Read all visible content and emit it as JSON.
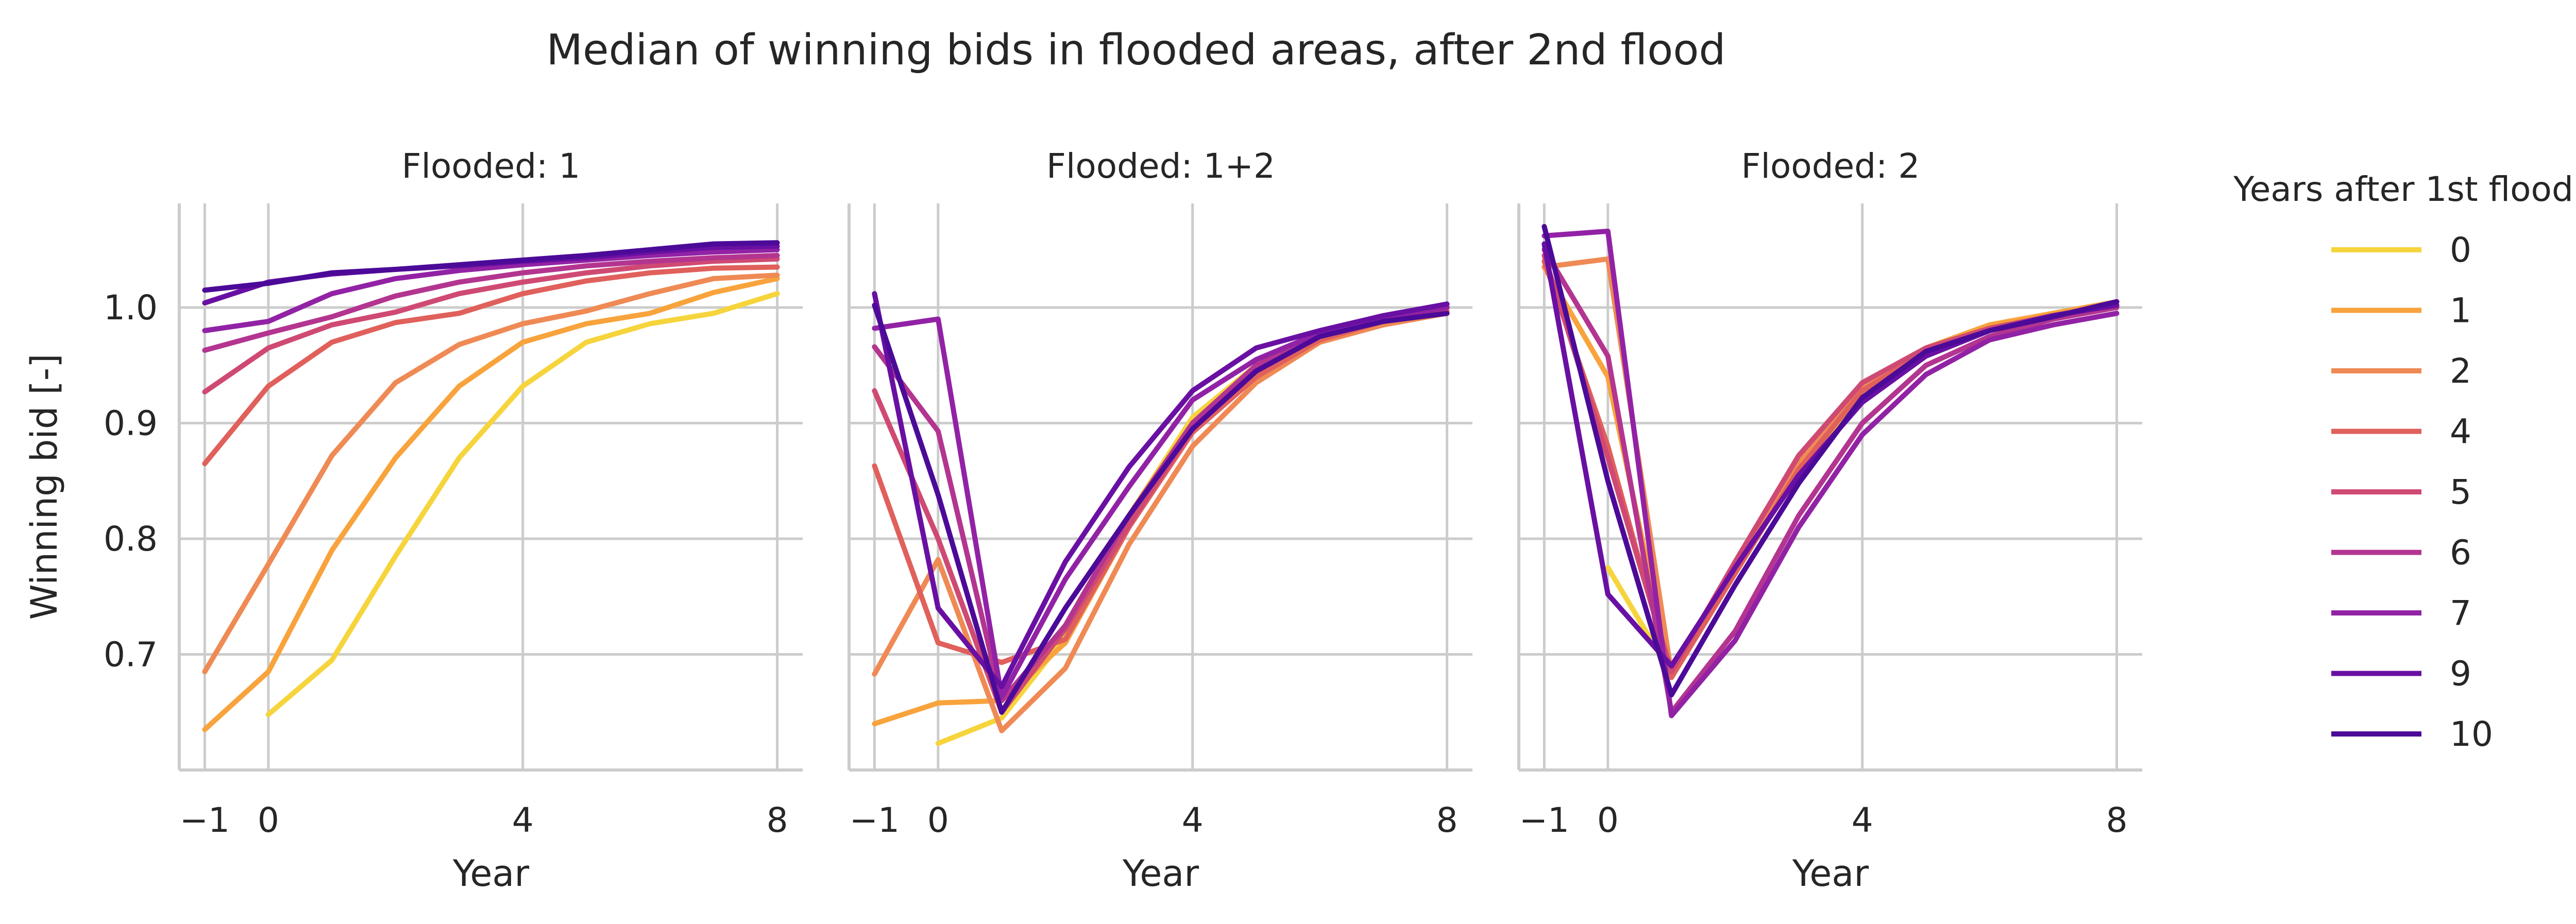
{
  "title": "Median of winning bids in flooded areas, after 2nd flood",
  "legend": {
    "title": "Years after 1st flood",
    "entries": [
      {
        "label": "0",
        "color": "#f6d43c"
      },
      {
        "label": "1",
        "color": "#f8a33c"
      },
      {
        "label": "2",
        "color": "#ef8a55"
      },
      {
        "label": "4",
        "color": "#e0605c"
      },
      {
        "label": "5",
        "color": "#cf4a73"
      },
      {
        "label": "6",
        "color": "#b33590"
      },
      {
        "label": "7",
        "color": "#9222a5"
      },
      {
        "label": "9",
        "color": "#6910a3"
      },
      {
        "label": "10",
        "color": "#4c0a98"
      }
    ]
  },
  "chart_data": [
    {
      "type": "line",
      "title": "Flooded: 1",
      "xlabel": "Year",
      "ylabel": "Winning bid [-]",
      "xlim": [
        -1.4,
        8.4
      ],
      "ylim": [
        0.6,
        1.09
      ],
      "xticks": [
        -1,
        0,
        4,
        8
      ],
      "xtick_labels": [
        "−1",
        "0",
        "4",
        "8"
      ],
      "yticks": [
        0.7,
        0.8,
        0.9,
        1.0
      ],
      "ytick_labels": [
        "0.7",
        "0.8",
        "0.9",
        "1.0"
      ],
      "grid": true,
      "series": [
        {
          "name": "0",
          "color": "#f6d43c",
          "x": [
            0,
            1,
            2,
            3,
            4,
            5,
            6,
            7,
            8
          ],
          "y": [
            0.648,
            0.695,
            0.785,
            0.87,
            0.932,
            0.97,
            0.986,
            0.995,
            1.012
          ]
        },
        {
          "name": "1",
          "color": "#f8a33c",
          "x": [
            -1,
            0,
            1,
            2,
            3,
            4,
            5,
            6,
            7,
            8
          ],
          "y": [
            0.635,
            0.685,
            0.79,
            0.87,
            0.932,
            0.97,
            0.986,
            0.995,
            1.013,
            1.025
          ]
        },
        {
          "name": "2",
          "color": "#ef8a55",
          "x": [
            -1,
            0,
            1,
            2,
            3,
            4,
            5,
            6,
            7,
            8
          ],
          "y": [
            0.685,
            0.778,
            0.872,
            0.935,
            0.968,
            0.986,
            0.997,
            1.012,
            1.025,
            1.028
          ]
        },
        {
          "name": "4",
          "color": "#e0605c",
          "x": [
            -1,
            0,
            1,
            2,
            3,
            4,
            5,
            6,
            7,
            8
          ],
          "y": [
            0.865,
            0.932,
            0.97,
            0.987,
            0.995,
            1.012,
            1.023,
            1.03,
            1.034,
            1.035
          ]
        },
        {
          "name": "5",
          "color": "#cf4a73",
          "x": [
            -1,
            0,
            1,
            2,
            3,
            4,
            5,
            6,
            7,
            8
          ],
          "y": [
            0.927,
            0.965,
            0.985,
            0.996,
            1.012,
            1.022,
            1.03,
            1.036,
            1.04,
            1.042
          ]
        },
        {
          "name": "6",
          "color": "#b33590",
          "x": [
            -1,
            0,
            1,
            2,
            3,
            4,
            5,
            6,
            7,
            8
          ],
          "y": [
            0.963,
            0.978,
            0.992,
            1.01,
            1.022,
            1.03,
            1.036,
            1.04,
            1.043,
            1.045
          ]
        },
        {
          "name": "7",
          "color": "#9222a5",
          "x": [
            -1,
            0,
            1,
            2,
            3,
            4,
            5,
            6,
            7,
            8
          ],
          "y": [
            0.98,
            0.988,
            1.012,
            1.025,
            1.032,
            1.037,
            1.041,
            1.045,
            1.048,
            1.05
          ]
        },
        {
          "name": "9",
          "color": "#6910a3",
          "x": [
            -1,
            0,
            1,
            2,
            3,
            4,
            5,
            6,
            7,
            8
          ],
          "y": [
            1.004,
            1.022,
            1.029,
            1.033,
            1.036,
            1.04,
            1.043,
            1.048,
            1.052,
            1.053
          ]
        },
        {
          "name": "10",
          "color": "#4c0a98",
          "x": [
            -1,
            0,
            1,
            2,
            3,
            4,
            5,
            6,
            7,
            8
          ],
          "y": [
            1.015,
            1.021,
            1.03,
            1.033,
            1.037,
            1.041,
            1.045,
            1.05,
            1.055,
            1.056
          ]
        }
      ]
    },
    {
      "type": "line",
      "title": "Flooded: 1+2",
      "xlabel": "Year",
      "ylabel": "",
      "xlim": [
        -1.4,
        8.4
      ],
      "ylim": [
        0.6,
        1.09
      ],
      "xticks": [
        -1,
        0,
        4,
        8
      ],
      "xtick_labels": [
        "−1",
        "0",
        "4",
        "8"
      ],
      "yticks": [
        0.7,
        0.8,
        0.9,
        1.0
      ],
      "ytick_labels": [],
      "grid": true,
      "series": [
        {
          "name": "0",
          "color": "#f6d43c",
          "x": [
            0,
            1,
            2,
            3,
            4,
            5,
            6,
            7,
            8
          ],
          "y": [
            0.623,
            0.645,
            0.715,
            0.82,
            0.905,
            0.95,
            0.975,
            0.99,
            1.0
          ]
        },
        {
          "name": "1",
          "color": "#f8a33c",
          "x": [
            -1,
            0,
            1,
            2,
            3,
            4,
            5,
            6,
            7,
            8
          ],
          "y": [
            0.64,
            0.658,
            0.66,
            0.71,
            0.81,
            0.9,
            0.945,
            0.975,
            0.99,
            1.0
          ]
        },
        {
          "name": "2",
          "color": "#ef8a55",
          "x": [
            -1,
            0,
            1,
            2,
            3,
            4,
            5,
            6,
            7,
            8
          ],
          "y": [
            0.683,
            0.782,
            0.634,
            0.688,
            0.795,
            0.88,
            0.935,
            0.97,
            0.985,
            0.995
          ]
        },
        {
          "name": "4",
          "color": "#e0605c",
          "x": [
            -1,
            0,
            1,
            2,
            3,
            4,
            5,
            6,
            7,
            8
          ],
          "y": [
            0.863,
            0.71,
            0.693,
            0.713,
            0.81,
            0.892,
            0.94,
            0.972,
            0.988,
            0.997
          ]
        },
        {
          "name": "5",
          "color": "#cf4a73",
          "x": [
            -1,
            0,
            1,
            2,
            3,
            4,
            5,
            6,
            7,
            8
          ],
          "y": [
            0.928,
            0.8,
            0.65,
            0.722,
            0.812,
            0.895,
            0.945,
            0.975,
            0.99,
            1.0
          ]
        },
        {
          "name": "6",
          "color": "#b33590",
          "x": [
            -1,
            0,
            1,
            2,
            3,
            4,
            5,
            6,
            7,
            8
          ],
          "y": [
            0.966,
            0.893,
            0.66,
            0.725,
            0.82,
            0.9,
            0.95,
            0.975,
            0.99,
            1.0
          ]
        },
        {
          "name": "7",
          "color": "#9222a5",
          "x": [
            -1,
            0,
            1,
            2,
            3,
            4,
            5,
            6,
            7,
            8
          ],
          "y": [
            0.982,
            0.99,
            0.663,
            0.765,
            0.845,
            0.92,
            0.955,
            0.978,
            0.992,
            1.0
          ]
        },
        {
          "name": "9",
          "color": "#6910a3",
          "x": [
            -1,
            0,
            1,
            2,
            3,
            4,
            5,
            6,
            7,
            8
          ],
          "y": [
            1.012,
            0.74,
            0.672,
            0.78,
            0.862,
            0.928,
            0.965,
            0.98,
            0.993,
            1.003
          ]
        },
        {
          "name": "10",
          "color": "#4c0a98",
          "x": [
            -1,
            0,
            1,
            2,
            3,
            4,
            5,
            6,
            7,
            8
          ],
          "y": [
            1.002,
            0.838,
            0.65,
            0.74,
            0.82,
            0.895,
            0.945,
            0.975,
            0.988,
            0.995
          ]
        }
      ]
    },
    {
      "type": "line",
      "title": "Flooded: 2",
      "xlabel": "Year",
      "ylabel": "",
      "xlim": [
        -1.4,
        8.4
      ],
      "ylim": [
        0.6,
        1.09
      ],
      "xticks": [
        -1,
        0,
        4,
        8
      ],
      "xtick_labels": [
        "−1",
        "0",
        "4",
        "8"
      ],
      "yticks": [
        0.7,
        0.8,
        0.9,
        1.0
      ],
      "ytick_labels": [],
      "grid": true,
      "series": [
        {
          "name": "0",
          "color": "#f6d43c",
          "x": [
            0,
            1,
            2,
            3,
            4,
            5,
            6,
            7,
            8
          ],
          "y": [
            0.775,
            0.683,
            0.77,
            0.86,
            0.925,
            0.96,
            0.98,
            0.99,
            1.0
          ]
        },
        {
          "name": "1",
          "color": "#f8a33c",
          "x": [
            -1,
            0,
            1,
            2,
            3,
            4,
            5,
            6,
            7,
            8
          ],
          "y": [
            1.035,
            0.94,
            0.68,
            0.775,
            0.865,
            0.93,
            0.965,
            0.985,
            0.995,
            1.005
          ]
        },
        {
          "name": "2",
          "color": "#ef8a55",
          "x": [
            -1,
            0,
            1,
            2,
            3,
            4,
            5,
            6,
            7,
            8
          ],
          "y": [
            1.035,
            1.042,
            0.683,
            0.775,
            0.868,
            0.932,
            0.965,
            0.982,
            0.993,
            1.005
          ]
        },
        {
          "name": "4",
          "color": "#e0605c",
          "x": [
            -1,
            0,
            1,
            2,
            3,
            4,
            5,
            6,
            7,
            8
          ],
          "y": [
            1.04,
            0.88,
            0.68,
            0.77,
            0.86,
            0.928,
            0.962,
            0.98,
            0.992,
            1.0
          ]
        },
        {
          "name": "5",
          "color": "#cf4a73",
          "x": [
            -1,
            0,
            1,
            2,
            3,
            4,
            5,
            6,
            7,
            8
          ],
          "y": [
            1.045,
            0.87,
            0.685,
            0.78,
            0.872,
            0.935,
            0.965,
            0.982,
            0.993,
            1.002
          ]
        },
        {
          "name": "6",
          "color": "#b33590",
          "x": [
            -1,
            0,
            1,
            2,
            3,
            4,
            5,
            6,
            7,
            8
          ],
          "y": [
            1.05,
            0.958,
            0.65,
            0.72,
            0.82,
            0.9,
            0.95,
            0.975,
            0.99,
            1.0
          ]
        },
        {
          "name": "7",
          "color": "#9222a5",
          "x": [
            -1,
            0,
            1,
            2,
            3,
            4,
            5,
            6,
            7,
            8
          ],
          "y": [
            1.062,
            1.066,
            0.647,
            0.712,
            0.81,
            0.89,
            0.942,
            0.972,
            0.985,
            0.995
          ]
        },
        {
          "name": "9",
          "color": "#6910a3",
          "x": [
            -1,
            0,
            1,
            2,
            3,
            4,
            5,
            6,
            7,
            8
          ],
          "y": [
            1.055,
            0.752,
            0.69,
            0.775,
            0.855,
            0.918,
            0.958,
            0.98,
            0.993,
            1.002
          ]
        },
        {
          "name": "10",
          "color": "#4c0a98",
          "x": [
            -1,
            0,
            1,
            2,
            3,
            4,
            5,
            6,
            7,
            8
          ],
          "y": [
            1.07,
            0.85,
            0.665,
            0.76,
            0.848,
            0.922,
            0.962,
            0.98,
            0.992,
            1.005
          ]
        }
      ]
    }
  ]
}
